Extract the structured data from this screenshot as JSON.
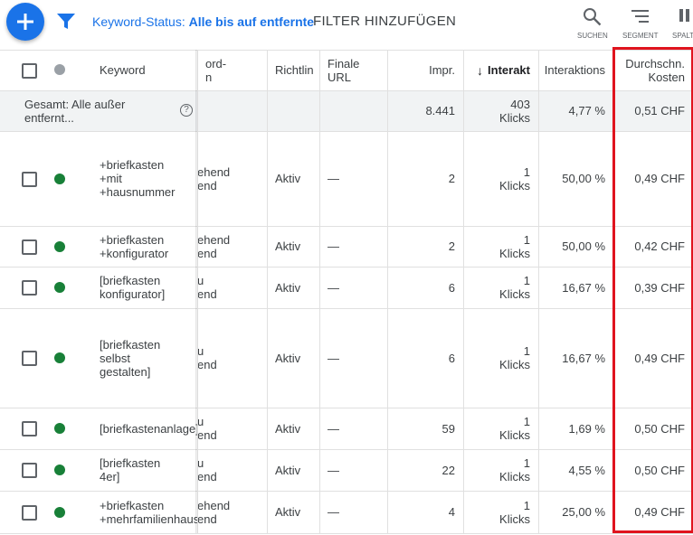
{
  "toolbar": {
    "filter_label": "Keyword-Status:",
    "filter_value": "Alle bis auf entfernte",
    "add_filter": "FILTER HINZUFÜGEN",
    "tools": [
      "SUCHEN",
      "SEGMENT",
      "SPALT"
    ]
  },
  "table": {
    "headers": {
      "keyword": "Keyword",
      "status": "ord-\nn",
      "policy": "Richtlin",
      "url": "Finale\nURL",
      "impr": "Impr.",
      "interactions": "Interakt",
      "rate": "Interaktions",
      "cost": "Durchschn.\nKosten"
    },
    "total": {
      "label": "Gesamt: Alle außer entfernt...",
      "impr": "8.441",
      "interactions": "403\nKlicks",
      "rate": "4,77 %",
      "cost": "0,51 CHF"
    },
    "rows": [
      {
        "keyword": "+briefkasten\n+mit\n+hausnummer",
        "status": "ehend\nend",
        "policy": "Aktiv",
        "url": "—",
        "impr": "2",
        "interactions": "1\nKlicks",
        "rate": "50,00 %",
        "cost": "0,49 CHF"
      },
      {
        "keyword": "+briefkasten\n+konfigurator",
        "status": "ehend\nend",
        "policy": "Aktiv",
        "url": "—",
        "impr": "2",
        "interactions": "1\nKlicks",
        "rate": "50,00 %",
        "cost": "0,42 CHF"
      },
      {
        "keyword": "[briefkasten\nkonfigurator]",
        "status": "u\nend",
        "policy": "Aktiv",
        "url": "—",
        "impr": "6",
        "interactions": "1\nKlicks",
        "rate": "16,67 %",
        "cost": "0,39 CHF"
      },
      {
        "keyword": "[briefkasten\nselbst\ngestalten]",
        "status": "u\nend",
        "policy": "Aktiv",
        "url": "—",
        "impr": "6",
        "interactions": "1\nKlicks",
        "rate": "16,67 %",
        "cost": "0,49 CHF"
      },
      {
        "keyword": "[briefkastenanlage]",
        "status": "u\nend",
        "policy": "Aktiv",
        "url": "—",
        "impr": "59",
        "interactions": "1\nKlicks",
        "rate": "1,69 %",
        "cost": "0,50 CHF"
      },
      {
        "keyword": "[briefkasten\n4er]",
        "status": "u\nend",
        "policy": "Aktiv",
        "url": "—",
        "impr": "22",
        "interactions": "1\nKlicks",
        "rate": "4,55 %",
        "cost": "0,50 CHF"
      },
      {
        "keyword": "+briefkasten\n+mehrfamilienhaus",
        "status": "ehend\nend",
        "policy": "Aktiv",
        "url": "—",
        "impr": "4",
        "interactions": "1\nKlicks",
        "rate": "25,00 %",
        "cost": "0,49 CHF"
      }
    ]
  }
}
